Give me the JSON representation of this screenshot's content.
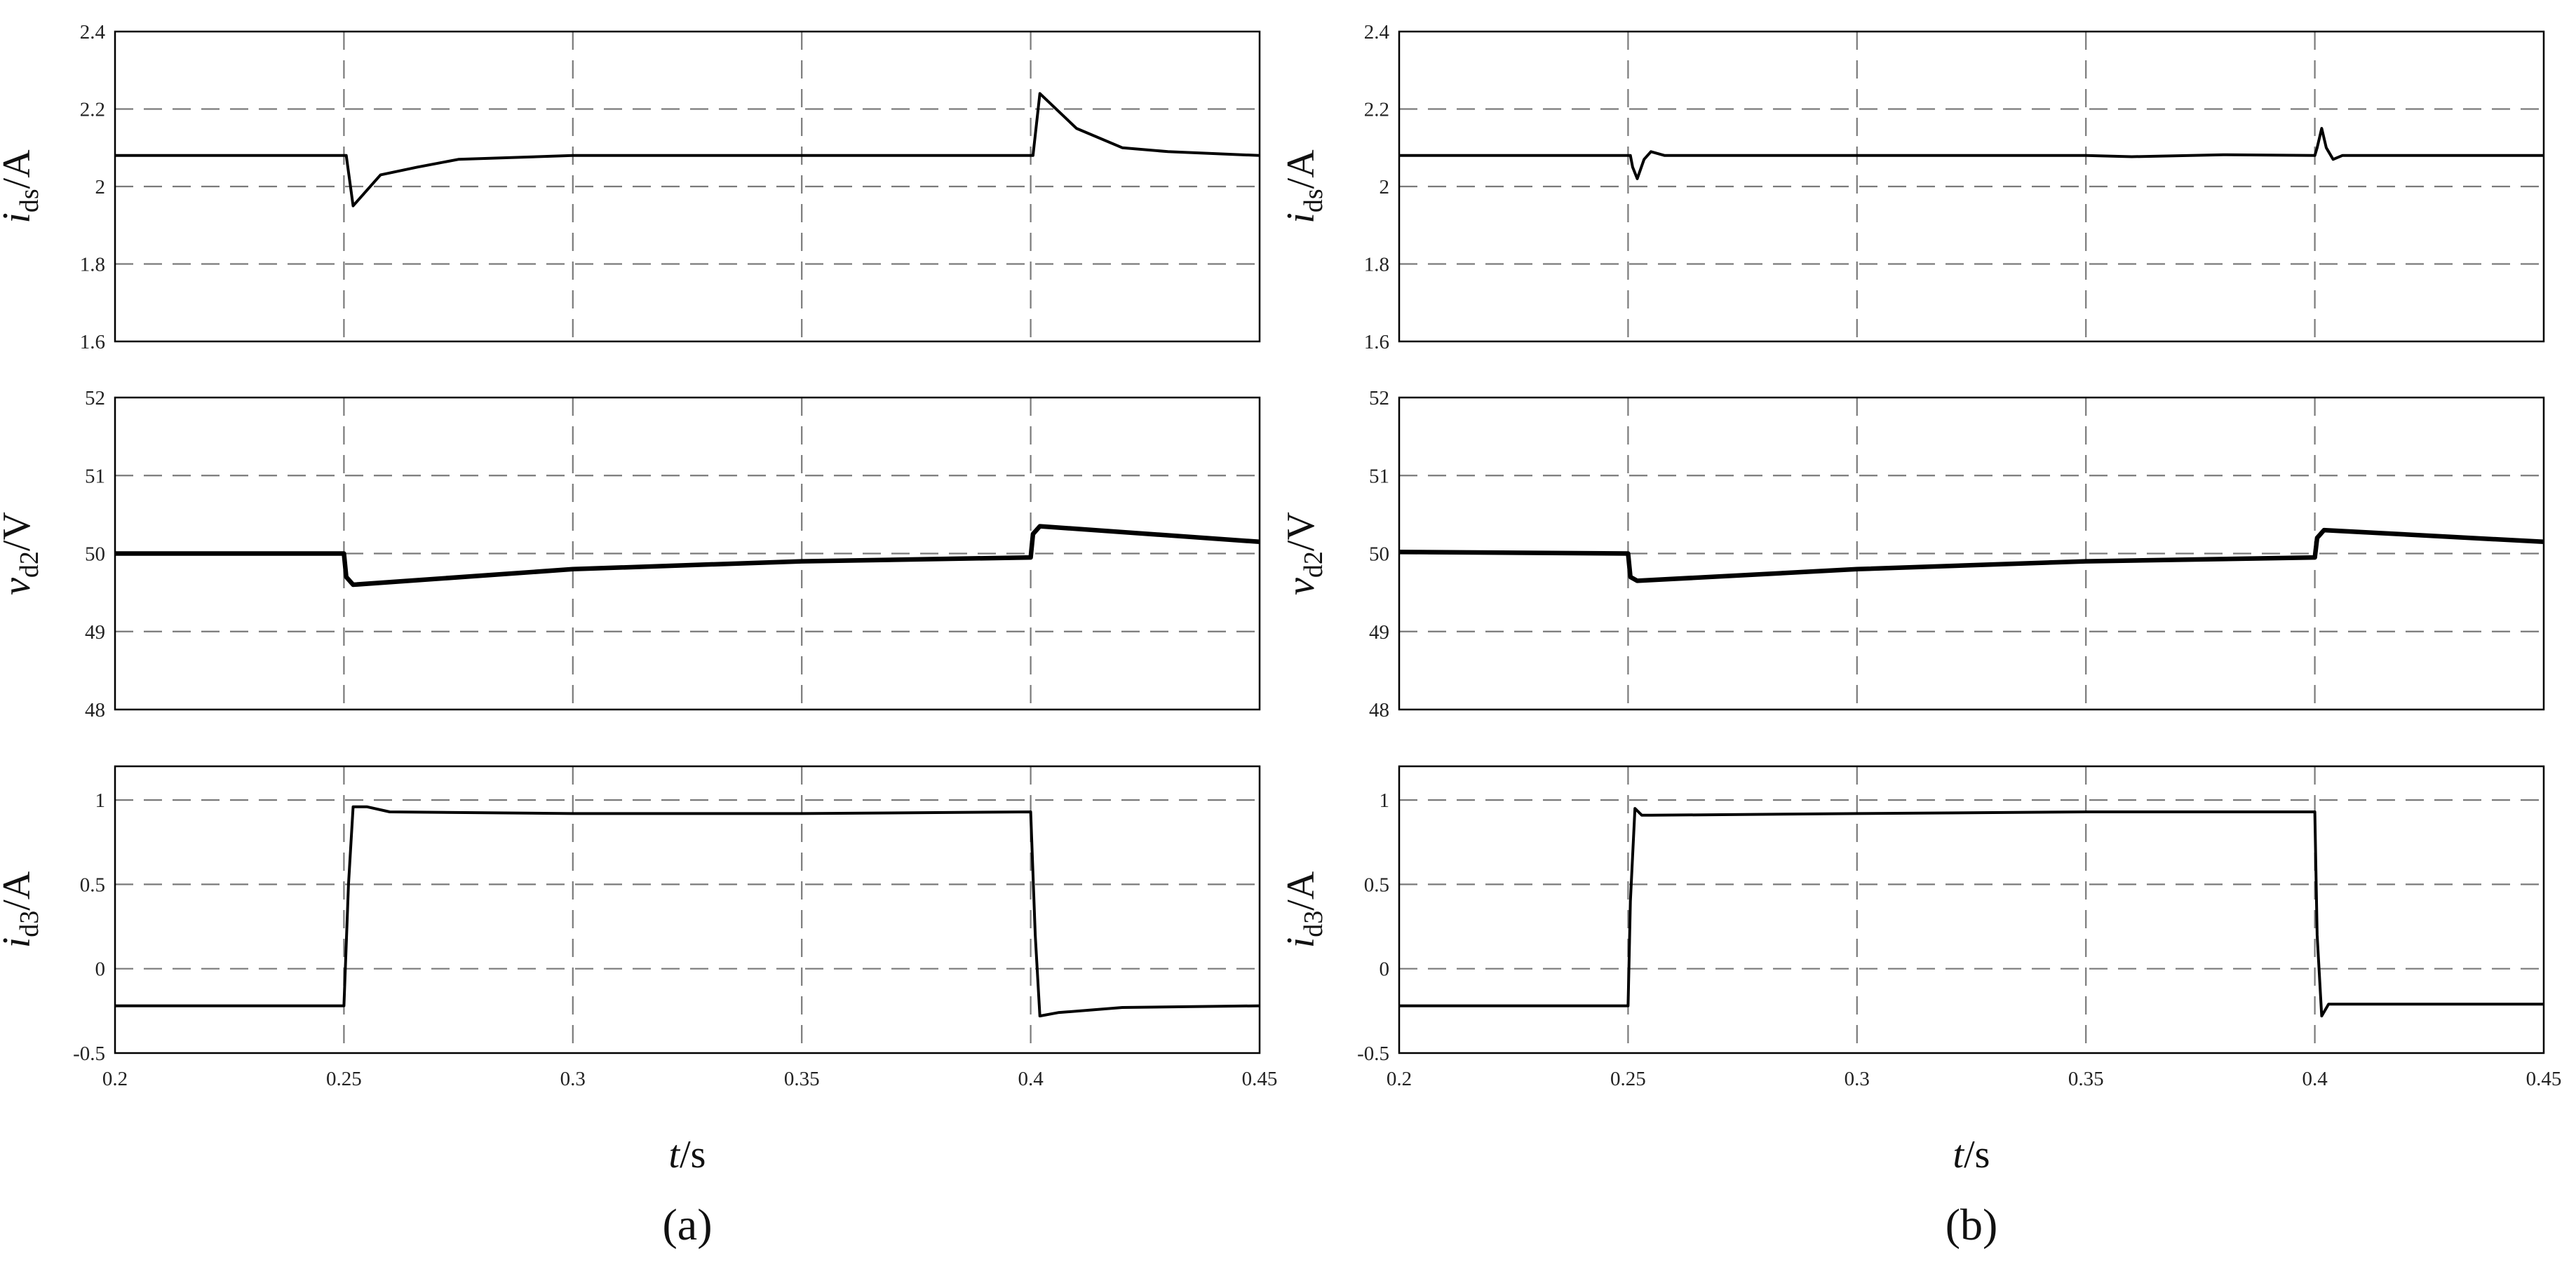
{
  "chart_data": [
    {
      "type": "line",
      "panel": "(a)",
      "xlabel": {
        "var": "t",
        "unit": "/s"
      },
      "xlim": [
        0.2,
        0.45
      ],
      "xticks": [
        "0.2",
        "0.25",
        "0.3",
        "0.35",
        "0.4",
        "0.45"
      ],
      "grid": true,
      "subplots": [
        {
          "ylabel": {
            "var": "i",
            "sub": "ds",
            "unit": "/A"
          },
          "ylim": [
            1.6,
            2.4
          ],
          "yticks": [
            "1.6",
            "1.8",
            "2",
            "2.2",
            "2.4"
          ],
          "series": [
            {
              "x": [
                0.2,
                0.2505,
                0.252,
                0.258,
                0.266,
                0.275,
                0.3,
                0.35,
                0.4005,
                0.402,
                0.41,
                0.42,
                0.43,
                0.45
              ],
              "y": [
                2.08,
                2.08,
                1.95,
                2.03,
                2.05,
                2.07,
                2.08,
                2.08,
                2.08,
                2.24,
                2.15,
                2.1,
                2.09,
                2.08
              ]
            }
          ]
        },
        {
          "ylabel": {
            "var": "v",
            "sub": "d2",
            "unit": "/V"
          },
          "ylim": [
            48,
            52
          ],
          "yticks": [
            "48",
            "49",
            "50",
            "51",
            "52"
          ],
          "series": [
            {
              "x": [
                0.2,
                0.25,
                0.2505,
                0.252,
                0.3,
                0.35,
                0.4,
                0.4005,
                0.402,
                0.45
              ],
              "y": [
                50.0,
                50.0,
                49.7,
                49.6,
                49.8,
                49.9,
                49.95,
                50.25,
                50.35,
                50.15
              ]
            }
          ]
        },
        {
          "ylabel": {
            "var": "i",
            "sub": "d3",
            "unit": "/A"
          },
          "ylim": [
            -0.5,
            1.2
          ],
          "yticks": [
            "-0.5",
            "0",
            "0.5",
            "1"
          ],
          "series": [
            {
              "x": [
                0.2,
                0.25,
                0.251,
                0.252,
                0.255,
                0.26,
                0.3,
                0.35,
                0.4,
                0.401,
                0.402,
                0.406,
                0.42,
                0.45
              ],
              "y": [
                -0.22,
                -0.22,
                0.5,
                0.96,
                0.96,
                0.93,
                0.92,
                0.92,
                0.93,
                0.2,
                -0.28,
                -0.26,
                -0.23,
                -0.22
              ]
            }
          ]
        }
      ]
    },
    {
      "type": "line",
      "panel": "(b)",
      "xlabel": {
        "var": "t",
        "unit": "/s"
      },
      "xlim": [
        0.2,
        0.45
      ],
      "xticks": [
        "0.2",
        "0.25",
        "0.3",
        "0.35",
        "0.4",
        "0.45"
      ],
      "grid": true,
      "subplots": [
        {
          "ylabel": {
            "var": "i",
            "sub": "ds",
            "unit": "/A"
          },
          "ylim": [
            1.6,
            2.4
          ],
          "yticks": [
            "1.6",
            "1.8",
            "2",
            "2.2",
            "2.4"
          ],
          "series": [
            {
              "x": [
                0.2,
                0.2505,
                0.251,
                0.252,
                0.2535,
                0.255,
                0.258,
                0.3,
                0.35,
                0.36,
                0.38,
                0.4,
                0.4005,
                0.4015,
                0.4025,
                0.404,
                0.406,
                0.45
              ],
              "y": [
                2.08,
                2.08,
                2.05,
                2.02,
                2.07,
                2.09,
                2.08,
                2.08,
                2.08,
                2.077,
                2.082,
                2.08,
                2.1,
                2.15,
                2.1,
                2.07,
                2.08,
                2.08
              ]
            }
          ]
        },
        {
          "ylabel": {
            "var": "v",
            "sub": "d2",
            "unit": "/V"
          },
          "ylim": [
            48,
            52
          ],
          "yticks": [
            "48",
            "49",
            "50",
            "51",
            "52"
          ],
          "series": [
            {
              "x": [
                0.2,
                0.25,
                0.2505,
                0.252,
                0.3,
                0.35,
                0.4,
                0.4005,
                0.402,
                0.45
              ],
              "y": [
                50.02,
                50.0,
                49.7,
                49.65,
                49.8,
                49.9,
                49.95,
                50.2,
                50.3,
                50.15
              ]
            }
          ]
        },
        {
          "ylabel": {
            "var": "i",
            "sub": "d3",
            "unit": "/A"
          },
          "ylim": [
            -0.5,
            1.2
          ],
          "yticks": [
            "-0.5",
            "0",
            "0.5",
            "1"
          ],
          "series": [
            {
              "x": [
                0.2,
                0.25,
                0.2505,
                0.2515,
                0.253,
                0.255,
                0.3,
                0.35,
                0.4,
                0.4005,
                0.4015,
                0.403,
                0.45
              ],
              "y": [
                -0.22,
                -0.22,
                0.4,
                0.95,
                0.91,
                0.91,
                0.92,
                0.93,
                0.93,
                0.2,
                -0.28,
                -0.21,
                -0.21
              ]
            }
          ]
        }
      ]
    }
  ]
}
